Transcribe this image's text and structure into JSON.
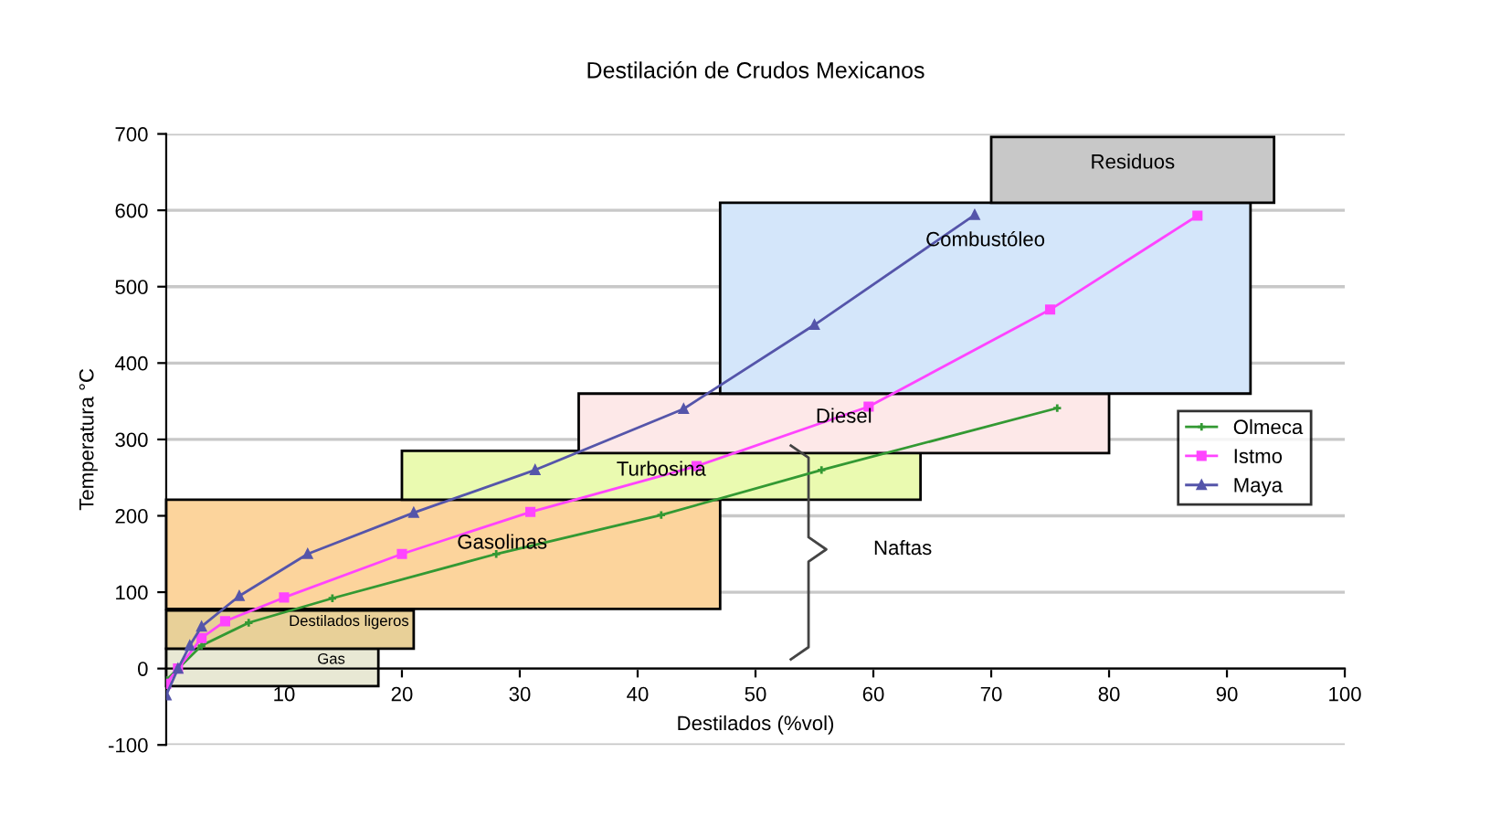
{
  "chart_data": {
    "type": "line",
    "title": "Destilación de Crudos Mexicanos",
    "xlabel": "Destilados (%vol)",
    "ylabel": "Temperatura °C",
    "series": [
      {
        "name": "Olmeca",
        "color": "#339933",
        "marker": "cross",
        "x": [
          0,
          1,
          3,
          7,
          14.1,
          28,
          42,
          55.6,
          75.6
        ],
        "values": [
          -15,
          0,
          30,
          60,
          92,
          150,
          201,
          260,
          341
        ]
      },
      {
        "name": "Istmo",
        "color": "#ff44ff",
        "marker": "square",
        "x": [
          0,
          1,
          3,
          5,
          10,
          20,
          30.9,
          45,
          59.6,
          75,
          87.5
        ],
        "values": [
          -20,
          0,
          40,
          62,
          93,
          150,
          205,
          265,
          343,
          470,
          593
        ]
      },
      {
        "name": "Maya",
        "color": "#5555aa",
        "marker": "triangle",
        "x": [
          0,
          1,
          2,
          3,
          6.2,
          12,
          21,
          31.3,
          43.9,
          55,
          68.6
        ],
        "values": [
          -35,
          0,
          30,
          55,
          95,
          150,
          204,
          260,
          340,
          450,
          594
        ]
      }
    ],
    "bands": [
      {
        "axis": "y",
        "from": -23,
        "to": 26,
        "label": "Gas",
        "color": "#e8e8d4"
      },
      {
        "axis": "y",
        "from": 26,
        "to": 76,
        "label": "Destilados ligeros",
        "color": "#e8d098"
      },
      {
        "axis": "y",
        "from": 78,
        "to": 221,
        "label": "Gasolinas",
        "color": "#fcd49c"
      },
      {
        "axis": "y",
        "from": 221,
        "to": 285,
        "label": "Turbosina",
        "color": "#eafab0"
      },
      {
        "axis": "y",
        "from": 282,
        "to": 360,
        "label": "Diesel",
        "color": "#fde8e8"
      },
      {
        "axis": "y",
        "from": 360,
        "to": 610,
        "label": "Combustóleo",
        "color": "#d4e6fa"
      },
      {
        "axis": "y",
        "from": 610,
        "to": 696,
        "label": "Residuos",
        "color": "#c8c8c8"
      }
    ],
    "annotations": [
      "Naftas"
    ],
    "xlim": [
      0,
      100
    ],
    "xticks": [
      {
        "value": 0,
        "label": null
      },
      10,
      20,
      30,
      40,
      50,
      60,
      70,
      80,
      90,
      100
    ],
    "ylim": [
      -100,
      700
    ],
    "yticks": [
      -100,
      0,
      100,
      200,
      300,
      400,
      500,
      600,
      700
    ],
    "grid": "y",
    "legend": "right",
    "line_style": "solid"
  }
}
